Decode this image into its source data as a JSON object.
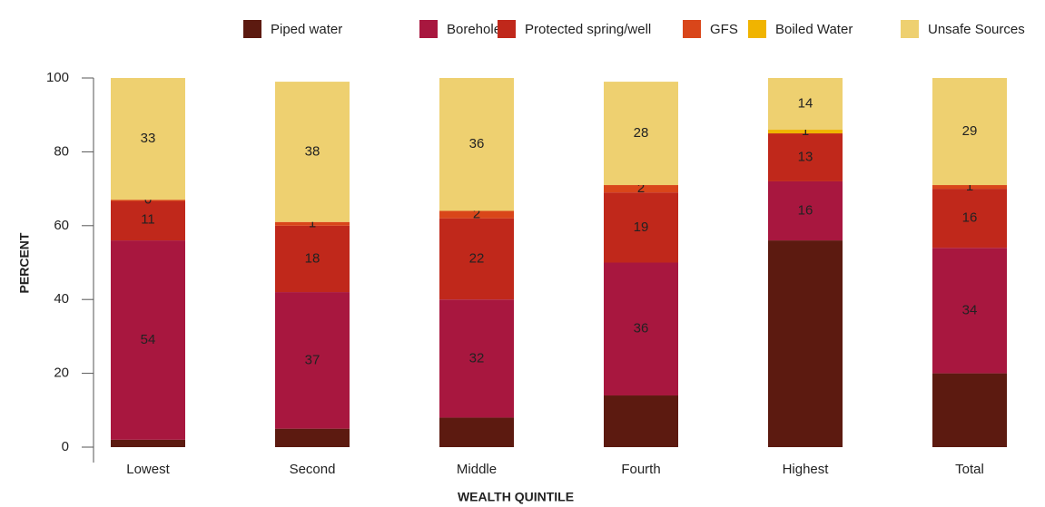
{
  "chart_data": {
    "type": "stacked_bar",
    "x_label": "WEALTH QUINTILE",
    "y_label": "PERCENT",
    "categories": [
      "Lowest",
      "Second",
      "Middle",
      "Fourth",
      "Highest",
      "Total"
    ],
    "series": [
      {
        "name": "Piped water",
        "color": "#5c1a10",
        "show_labels": false,
        "values": [
          2,
          5,
          8,
          14,
          56,
          20
        ]
      },
      {
        "name": "Borehole",
        "color": "#a8173f",
        "show_labels": true,
        "values": [
          54,
          37,
          32,
          36,
          16,
          34
        ]
      },
      {
        "name": "Protected spring/well",
        "color": "#c0281b",
        "show_labels": true,
        "values": [
          11,
          18,
          22,
          19,
          13,
          16
        ]
      },
      {
        "name": "GFS",
        "color": "#d9461a",
        "show_labels": true,
        "values": [
          0,
          1,
          2,
          2,
          null,
          1
        ]
      },
      {
        "name": "Boiled Water",
        "color": "#f0b400",
        "show_labels": true,
        "values": [
          null,
          null,
          null,
          null,
          1,
          null
        ]
      },
      {
        "name": "Unsafe Sources",
        "color": "#eed070",
        "show_labels": true,
        "values": [
          33,
          38,
          36,
          28,
          14,
          29
        ]
      }
    ],
    "ylim": [
      0,
      100
    ],
    "yticks": [
      0,
      20,
      40,
      60,
      80,
      100
    ],
    "grid": false
  }
}
